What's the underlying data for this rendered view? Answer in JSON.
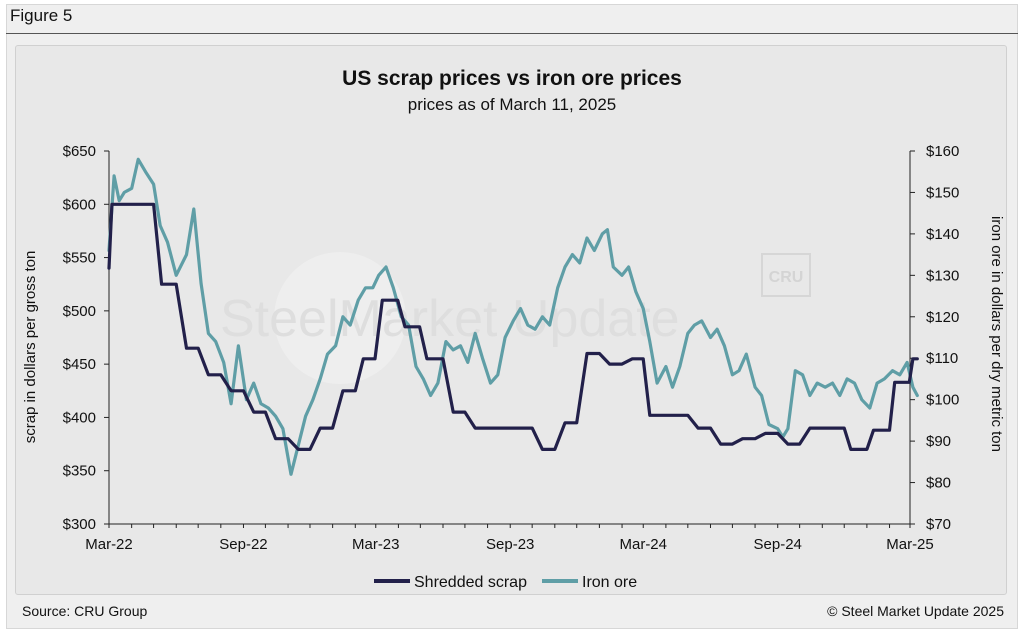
{
  "figure_label": "Figure 5",
  "footer": {
    "source": "Source: CRU Group",
    "copyright": "© Steel Market Update 2025"
  },
  "watermark": {
    "text": "SteelMarket Update",
    "badge": "CRU"
  },
  "colors": {
    "scrap": "#22204a",
    "iron_ore": "#5f9ea6"
  },
  "chart_data": {
    "type": "line",
    "title": "US scrap prices vs iron ore prices",
    "subtitle": "prices as of March 11, 2025",
    "ylabel": "scrap in dollars per gross ton",
    "y2label": "iron ore in dollars per dry metric ton",
    "ylim": [
      300,
      650
    ],
    "y2lim": [
      70,
      160
    ],
    "y_ticks": [
      "$650",
      "$600",
      "$550",
      "$500",
      "$450",
      "$400",
      "$350",
      "$300"
    ],
    "y2_ticks": [
      "$160",
      "$150",
      "$140",
      "$130",
      "$120",
      "$110",
      "$100",
      "$90",
      "$80",
      "$70"
    ],
    "x_ticks": [
      "Mar-22",
      "Sep-22",
      "Mar-23",
      "Sep-23",
      "Mar-24",
      "Sep-24",
      "Mar-25"
    ],
    "x_range": [
      "2022-03",
      "2025-03"
    ],
    "legend": "bottom",
    "series": [
      {
        "name": "Shredded scrap",
        "axis": "left",
        "points": [
          [
            "2022-03-01",
            540
          ],
          [
            "2022-03-05",
            600
          ],
          [
            "2022-04-01",
            600
          ],
          [
            "2022-05-01",
            600
          ],
          [
            "2022-05-12",
            525
          ],
          [
            "2022-06-01",
            525
          ],
          [
            "2022-06-15",
            465
          ],
          [
            "2022-07-01",
            465
          ],
          [
            "2022-07-15",
            440
          ],
          [
            "2022-08-01",
            440
          ],
          [
            "2022-08-15",
            425
          ],
          [
            "2022-09-01",
            425
          ],
          [
            "2022-09-15",
            405
          ],
          [
            "2022-10-01",
            405
          ],
          [
            "2022-10-15",
            380
          ],
          [
            "2022-11-01",
            380
          ],
          [
            "2022-11-15",
            370
          ],
          [
            "2022-12-01",
            370
          ],
          [
            "2022-12-15",
            390
          ],
          [
            "2023-01-01",
            390
          ],
          [
            "2023-01-15",
            425
          ],
          [
            "2023-02-01",
            425
          ],
          [
            "2023-02-12",
            455
          ],
          [
            "2023-02-28",
            455
          ],
          [
            "2023-03-10",
            510
          ],
          [
            "2023-03-31",
            510
          ],
          [
            "2023-04-10",
            485
          ],
          [
            "2023-04-30",
            485
          ],
          [
            "2023-05-10",
            455
          ],
          [
            "2023-06-01",
            455
          ],
          [
            "2023-06-15",
            405
          ],
          [
            "2023-07-01",
            405
          ],
          [
            "2023-07-15",
            390
          ],
          [
            "2023-08-01",
            390
          ],
          [
            "2023-09-01",
            390
          ],
          [
            "2023-10-01",
            390
          ],
          [
            "2023-10-15",
            370
          ],
          [
            "2023-11-01",
            370
          ],
          [
            "2023-11-15",
            395
          ],
          [
            "2023-12-01",
            395
          ],
          [
            "2023-12-15",
            460
          ],
          [
            "2024-01-01",
            460
          ],
          [
            "2024-01-15",
            450
          ],
          [
            "2024-02-01",
            450
          ],
          [
            "2024-02-15",
            455
          ],
          [
            "2024-03-01",
            455
          ],
          [
            "2024-03-10",
            402
          ],
          [
            "2024-04-01",
            402
          ],
          [
            "2024-05-01",
            402
          ],
          [
            "2024-05-15",
            390
          ],
          [
            "2024-06-01",
            390
          ],
          [
            "2024-06-15",
            375
          ],
          [
            "2024-07-01",
            375
          ],
          [
            "2024-07-15",
            380
          ],
          [
            "2024-08-01",
            380
          ],
          [
            "2024-08-15",
            385
          ],
          [
            "2024-09-01",
            385
          ],
          [
            "2024-09-15",
            375
          ],
          [
            "2024-10-01",
            375
          ],
          [
            "2024-10-15",
            390
          ],
          [
            "2024-11-01",
            390
          ],
          [
            "2024-11-15",
            390
          ],
          [
            "2024-12-01",
            390
          ],
          [
            "2024-12-10",
            370
          ],
          [
            "2025-01-01",
            370
          ],
          [
            "2025-01-10",
            388
          ],
          [
            "2025-02-01",
            388
          ],
          [
            "2025-02-08",
            433
          ],
          [
            "2025-02-28",
            433
          ],
          [
            "2025-03-05",
            455
          ],
          [
            "2025-03-11",
            455
          ]
        ]
      },
      {
        "name": "Iron ore",
        "axis": "right",
        "points": [
          [
            "2022-03-01",
            136
          ],
          [
            "2022-03-08",
            154
          ],
          [
            "2022-03-15",
            148
          ],
          [
            "2022-03-22",
            150
          ],
          [
            "2022-04-01",
            151
          ],
          [
            "2022-04-10",
            158
          ],
          [
            "2022-04-20",
            155
          ],
          [
            "2022-05-01",
            152
          ],
          [
            "2022-05-10",
            142
          ],
          [
            "2022-05-20",
            138
          ],
          [
            "2022-06-01",
            130
          ],
          [
            "2022-06-15",
            135
          ],
          [
            "2022-06-25",
            146
          ],
          [
            "2022-07-05",
            128
          ],
          [
            "2022-07-15",
            116
          ],
          [
            "2022-07-25",
            114
          ],
          [
            "2022-08-05",
            109
          ],
          [
            "2022-08-15",
            99
          ],
          [
            "2022-08-25",
            113
          ],
          [
            "2022-09-05",
            100
          ],
          [
            "2022-09-15",
            104
          ],
          [
            "2022-09-25",
            99
          ],
          [
            "2022-10-05",
            98
          ],
          [
            "2022-10-15",
            96
          ],
          [
            "2022-10-25",
            93
          ],
          [
            "2022-11-05",
            82
          ],
          [
            "2022-11-15",
            89
          ],
          [
            "2022-11-25",
            96
          ],
          [
            "2022-12-05",
            100
          ],
          [
            "2022-12-15",
            105
          ],
          [
            "2022-12-25",
            111
          ],
          [
            "2023-01-05",
            113
          ],
          [
            "2023-01-15",
            120
          ],
          [
            "2023-01-25",
            118
          ],
          [
            "2023-02-05",
            124
          ],
          [
            "2023-02-15",
            127
          ],
          [
            "2023-02-25",
            127
          ],
          [
            "2023-03-05",
            130
          ],
          [
            "2023-03-15",
            132
          ],
          [
            "2023-03-25",
            127
          ],
          [
            "2023-04-05",
            120
          ],
          [
            "2023-04-15",
            118
          ],
          [
            "2023-04-25",
            108
          ],
          [
            "2023-05-05",
            105
          ],
          [
            "2023-05-15",
            101
          ],
          [
            "2023-05-25",
            104
          ],
          [
            "2023-06-05",
            114
          ],
          [
            "2023-06-15",
            112
          ],
          [
            "2023-06-25",
            113
          ],
          [
            "2023-07-05",
            109
          ],
          [
            "2023-07-15",
            116
          ],
          [
            "2023-07-25",
            110
          ],
          [
            "2023-08-05",
            104
          ],
          [
            "2023-08-15",
            106
          ],
          [
            "2023-08-25",
            115
          ],
          [
            "2023-09-05",
            119
          ],
          [
            "2023-09-15",
            122
          ],
          [
            "2023-09-25",
            118
          ],
          [
            "2023-10-05",
            117
          ],
          [
            "2023-10-15",
            120
          ],
          [
            "2023-10-25",
            118
          ],
          [
            "2023-11-05",
            127
          ],
          [
            "2023-11-15",
            132
          ],
          [
            "2023-11-25",
            135
          ],
          [
            "2023-12-05",
            133
          ],
          [
            "2023-12-15",
            139
          ],
          [
            "2023-12-25",
            136
          ],
          [
            "2024-01-05",
            140
          ],
          [
            "2024-01-12",
            141
          ],
          [
            "2024-01-20",
            132
          ],
          [
            "2024-02-01",
            130
          ],
          [
            "2024-02-10",
            132
          ],
          [
            "2024-02-20",
            126
          ],
          [
            "2024-03-01",
            122
          ],
          [
            "2024-03-10",
            114
          ],
          [
            "2024-03-20",
            104
          ],
          [
            "2024-04-01",
            108
          ],
          [
            "2024-04-10",
            103
          ],
          [
            "2024-04-20",
            108
          ],
          [
            "2024-05-01",
            116
          ],
          [
            "2024-05-10",
            118
          ],
          [
            "2024-05-20",
            119
          ],
          [
            "2024-06-01",
            115
          ],
          [
            "2024-06-10",
            117
          ],
          [
            "2024-06-20",
            113
          ],
          [
            "2024-07-01",
            106
          ],
          [
            "2024-07-10",
            107
          ],
          [
            "2024-07-20",
            111
          ],
          [
            "2024-08-01",
            103
          ],
          [
            "2024-08-10",
            101
          ],
          [
            "2024-08-20",
            94
          ],
          [
            "2024-09-01",
            93
          ],
          [
            "2024-09-08",
            91
          ],
          [
            "2024-09-15",
            93
          ],
          [
            "2024-09-25",
            107
          ],
          [
            "2024-10-05",
            106
          ],
          [
            "2024-10-15",
            101
          ],
          [
            "2024-10-25",
            104
          ],
          [
            "2024-11-05",
            103
          ],
          [
            "2024-11-15",
            104
          ],
          [
            "2024-11-25",
            101
          ],
          [
            "2024-12-05",
            105
          ],
          [
            "2024-12-15",
            104
          ],
          [
            "2024-12-25",
            100
          ],
          [
            "2025-01-05",
            98
          ],
          [
            "2025-01-15",
            104
          ],
          [
            "2025-01-25",
            105
          ],
          [
            "2025-02-05",
            107
          ],
          [
            "2025-02-15",
            106
          ],
          [
            "2025-02-25",
            109
          ],
          [
            "2025-03-05",
            103
          ],
          [
            "2025-03-11",
            101
          ]
        ]
      }
    ]
  }
}
